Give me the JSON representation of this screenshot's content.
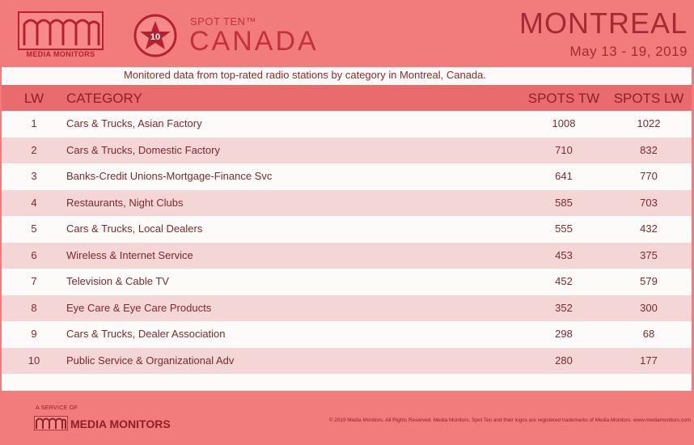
{
  "header": {
    "logo_text": "MEDIA MONITORS",
    "badge_number": "10",
    "spot_ten": "SPOT TEN™",
    "country": "CANADA",
    "city": "MONTREAL",
    "dates": "May 13 - 19, 2019"
  },
  "panel": {
    "subtitle": "Monitored data from top-rated radio stations by category in Montreal, Canada."
  },
  "columns": {
    "lw": "LW",
    "category": "CATEGORY",
    "spots_tw": "SPOTS TW",
    "spots_lw": "SPOTS LW"
  },
  "rows": [
    {
      "lw": "1",
      "category": "Cars & Trucks, Asian Factory",
      "spots_tw": "1008",
      "spots_lw": "1022"
    },
    {
      "lw": "2",
      "category": "Cars & Trucks, Domestic Factory",
      "spots_tw": "710",
      "spots_lw": "832"
    },
    {
      "lw": "3",
      "category": "Banks-Credit Unions-Mortgage-Finance Svc",
      "spots_tw": "641",
      "spots_lw": "770"
    },
    {
      "lw": "4",
      "category": "Restaurants, Night Clubs",
      "spots_tw": "585",
      "spots_lw": "703"
    },
    {
      "lw": "5",
      "category": "Cars & Trucks, Local Dealers",
      "spots_tw": "555",
      "spots_lw": "432"
    },
    {
      "lw": "6",
      "category": "Wireless & Internet Service",
      "spots_tw": "453",
      "spots_lw": "375"
    },
    {
      "lw": "7",
      "category": "Television & Cable TV",
      "spots_tw": "452",
      "spots_lw": "579"
    },
    {
      "lw": "8",
      "category": "Eye Care & Eye Care Products",
      "spots_tw": "352",
      "spots_lw": "300"
    },
    {
      "lw": "9",
      "category": "Cars & Trucks, Dealer Association",
      "spots_tw": "298",
      "spots_lw": "68"
    },
    {
      "lw": "10",
      "category": "Public Service & Organizational Adv",
      "spots_tw": "280",
      "spots_lw": "177"
    }
  ],
  "footer": {
    "service": "A SERVICE OF",
    "logo_text": "MEDIA MONITORS",
    "copyright": "© 2019 Media Monitors. All Rights Reserved. Media Monitors, Spot Ten and their logos are registered trademarks of Media Monitors. www.mediamonitors.com"
  },
  "colors": {
    "background": "#f27b7b",
    "header_row": "#e96b6d",
    "stripe": "#f5d6d6",
    "text_dark": "#8e2028"
  }
}
